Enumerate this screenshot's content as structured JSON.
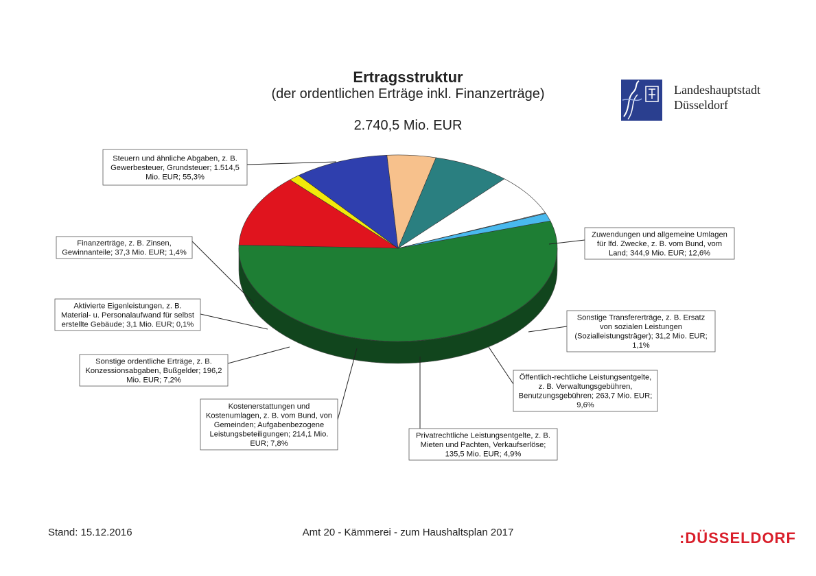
{
  "header": {
    "title": "Ertragsstruktur",
    "subtitle": "(der ordentlichen Erträge inkl. Finanzerträge)",
    "total": "2.740,5 Mio. EUR"
  },
  "logo": {
    "line1": "Landeshauptstadt",
    "line2": "Düsseldorf",
    "icon": "city-crest-icon",
    "color": "#2a3f8f"
  },
  "footer": {
    "stand": "Stand: 15.12.2016",
    "center": "Amt 20 - Kämmerei - zum Haushaltsplan 2017",
    "brand": ":DÜSSELDORF",
    "brand_color": "#d91e2a"
  },
  "chart_data": {
    "type": "pie",
    "style": "3d",
    "total": 2740.5,
    "unit": "Mio. EUR",
    "slices": [
      {
        "label": "Steuern und ähnliche Abgaben, z. B. Gewerbesteuer, Grundsteuer; 1.514,5 Mio. EUR; 55,3%",
        "value": 1514.5,
        "percent": 55.3,
        "color": "#1e7e34"
      },
      {
        "label": "Zuwendungen und allgemeine Umlagen für lfd. Zwecke, z. B. vom Bund, vom Land; 344,9 Mio. EUR; 12,6%",
        "value": 344.9,
        "percent": 12.6,
        "color": "#e0141e"
      },
      {
        "label": "Sonstige Transfererträge, z. B. Ersatz von sozialen Leistungen (Sozialleistungsträger); 31,2 Mio. EUR; 1,1%",
        "value": 31.2,
        "percent": 1.1,
        "color": "#f2ea0a"
      },
      {
        "label": "Öffentlich-rechtliche Leistungsentgelte, z. B. Verwaltungsgebühren, Benutzungsgebühren; 263,7 Mio. EUR; 9,6%",
        "value": 263.7,
        "percent": 9.6,
        "color": "#2f3fae"
      },
      {
        "label": "Privatrechtliche Leistungsentgelte, z. B. Mieten und Pachten, Verkaufserlöse; 135,5 Mio. EUR; 4,9%",
        "value": 135.5,
        "percent": 4.9,
        "color": "#f7c18c"
      },
      {
        "label": "Kostenerstattungen und Kostenumlagen, z. B. vom Bund, von Gemeinden; Aufgabenbezogene Leistungsbeteiligungen; 214,1 Mio. EUR; 7,8%",
        "value": 214.1,
        "percent": 7.8,
        "color": "#2a7f80"
      },
      {
        "label": "Sonstige ordentliche Erträge, z. B. Konzessionsabgaben, Bußgelder; 196,2 Mio. EUR; 7,2%",
        "value": 196.2,
        "percent": 7.2,
        "color": "#ffffff"
      },
      {
        "label": "Aktivierte Eigenleistungen, z. B. Material- u. Personalaufwand für selbst erstellte Gebäude; 3,1 Mio. EUR; 0,1%",
        "value": 3.1,
        "percent": 0.1,
        "color": "#b0b0b0"
      },
      {
        "label": "Finanzerträge, z. B. Zinsen, Gewinnanteile; 37,3 Mio. EUR; 1,4%",
        "value": 37.3,
        "percent": 1.4,
        "color": "#49b9ee"
      }
    ],
    "callouts": [
      {
        "lines": [
          "Steuern und ähnliche Abgaben, z. B.",
          "Gewerbesteuer, Grundsteuer; 1.514,5",
          "Mio. EUR; 55,3%"
        ]
      },
      {
        "lines": [
          "Zuwendungen und allgemeine Umlagen",
          "für lfd. Zwecke, z. B. vom Bund, vom",
          "Land; 344,9 Mio. EUR; 12,6%"
        ]
      },
      {
        "lines": [
          "Sonstige Transfererträge, z. B. Ersatz",
          "von sozialen Leistungen",
          "(Sozialleistungsträger); 31,2 Mio. EUR;",
          "1,1%"
        ]
      },
      {
        "lines": [
          "Öffentlich-rechtliche Leistungsentgelte,",
          "z. B. Verwaltungsgebühren,",
          "Benutzungsgebühren; 263,7 Mio. EUR;",
          "9,6%"
        ]
      },
      {
        "lines": [
          "Privatrechtliche Leistungsentgelte, z. B.",
          "Mieten und Pachten, Verkaufserlöse;",
          "135,5 Mio. EUR; 4,9%"
        ]
      },
      {
        "lines": [
          "Kostenerstattungen und",
          "Kostenumlagen, z. B. vom Bund, von",
          "Gemeinden; Aufgabenbezogene",
          "Leistungsbeteiligungen; 214,1 Mio.",
          "EUR; 7,8%"
        ]
      },
      {
        "lines": [
          "Sonstige ordentliche Erträge, z. B.",
          "Konzessionsabgaben, Bußgelder; 196,2",
          "Mio. EUR; 7,2%"
        ]
      },
      {
        "lines": [
          "Aktivierte Eigenleistungen, z. B.",
          "Material- u. Personalaufwand für selbst",
          "erstellte Gebäude; 3,1 Mio. EUR; 0,1%"
        ]
      },
      {
        "lines": [
          "Finanzerträge, z. B. Zinsen,",
          "Gewinnanteile; 37,3 Mio. EUR; 1,4%"
        ]
      }
    ]
  }
}
